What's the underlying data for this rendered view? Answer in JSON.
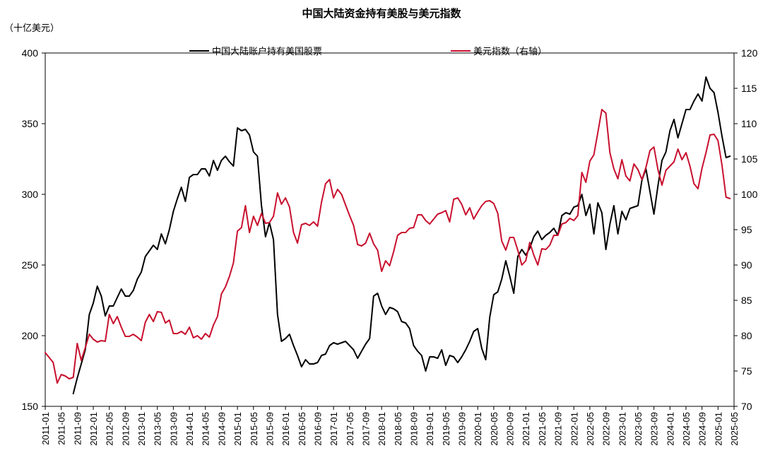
{
  "chart_data": {
    "type": "line",
    "title": "中国大陆资金持有美股与美元指数",
    "ylabel_left": "（十亿美元）",
    "ylim_left": [
      150,
      400
    ],
    "yticks_left": [
      "150",
      "200",
      "250",
      "300",
      "350",
      "400"
    ],
    "ylim_right": [
      70,
      120
    ],
    "yticks_right": [
      "70",
      "75",
      "80",
      "85",
      "90",
      "95",
      "100",
      "105",
      "110",
      "115",
      "120"
    ],
    "x_start": "2011-01",
    "x_end": "2025-05",
    "x_labels": [
      "2011-01",
      "2011-05",
      "2011-09",
      "2012-01",
      "2012-05",
      "2012-09",
      "2013-01",
      "2013-05",
      "2013-09",
      "2014-01",
      "2014-05",
      "2014-09",
      "2015-01",
      "2015-05",
      "2015-09",
      "2016-01",
      "2016-05",
      "2016-09",
      "2017-01",
      "2017-05",
      "2017-09",
      "2018-01",
      "2018-05",
      "2018-09",
      "2019-01",
      "2019-05",
      "2019-09",
      "2020-01",
      "2020-05",
      "2020-09",
      "2021-01",
      "2021-05",
      "2021-09",
      "2022-01",
      "2022-05",
      "2022-09",
      "2023-01",
      "2023-05",
      "2023-09",
      "2024-01",
      "2024-05",
      "2024-09",
      "2025-01",
      "2025-05"
    ],
    "series": [
      {
        "name": "中国大陆账户持有美国股票",
        "axis": "left",
        "color": "#000000",
        "start": "2011-08",
        "values": [
          159,
          170,
          180,
          190,
          215,
          223,
          235,
          228,
          214,
          221,
          221,
          227,
          233,
          228,
          228,
          232,
          240,
          245,
          256,
          260,
          264,
          261,
          272,
          265,
          275,
          288,
          297,
          305,
          295,
          312,
          314,
          314,
          318,
          318,
          313,
          324,
          317,
          324,
          327,
          323,
          320,
          347,
          345,
          346,
          342,
          330,
          327,
          292,
          270,
          280,
          268,
          215,
          196,
          198,
          201,
          193,
          186,
          178,
          183,
          180,
          180,
          181,
          186,
          187,
          193,
          195,
          194,
          195,
          196,
          193,
          190,
          184,
          189,
          194,
          198,
          228,
          230,
          221,
          215,
          220,
          219,
          217,
          210,
          209,
          205,
          193,
          189,
          186,
          175,
          185,
          185,
          184,
          190,
          179,
          186,
          185,
          181,
          185,
          190,
          196,
          203,
          205,
          191,
          183,
          213,
          229,
          231,
          240,
          253,
          242,
          230,
          256,
          261,
          257,
          262,
          270,
          274,
          268,
          271,
          273,
          276,
          271,
          285,
          287,
          286,
          291,
          292,
          300,
          285,
          293,
          272,
          294,
          287,
          261,
          279,
          292,
          272,
          288,
          282,
          290,
          291,
          292,
          310,
          318,
          302,
          286,
          306,
          324,
          330,
          345,
          353,
          340,
          350,
          360,
          360,
          366,
          371,
          366,
          383,
          375,
          372,
          358,
          341,
          326,
          327
        ]
      },
      {
        "name": "美元指数（右轴）",
        "axis": "right",
        "color": "#c8102e",
        "start": "2011-01",
        "values": [
          77.6,
          76.9,
          76.2,
          73.3,
          74.5,
          74.3,
          73.9,
          74.1,
          78.9,
          76.5,
          78.3,
          80.2,
          79.5,
          79.1,
          79.3,
          79.2,
          83.0,
          81.7,
          82.7,
          81.2,
          79.9,
          79.9,
          80.2,
          79.8,
          79.3,
          81.9,
          83.0,
          82.0,
          83.4,
          83.3,
          81.8,
          82.2,
          80.3,
          80.3,
          80.6,
          80.2,
          81.2,
          79.7,
          80.0,
          79.5,
          80.3,
          79.8,
          81.5,
          82.7,
          85.9,
          86.9,
          88.4,
          90.3,
          94.8,
          95.3,
          98.4,
          94.6,
          96.9,
          95.6,
          97.3,
          95.9,
          96.0,
          96.9,
          100.2,
          98.6,
          99.5,
          98.2,
          94.6,
          93.1,
          95.7,
          95.9,
          95.6,
          96.1,
          95.5,
          98.9,
          101.5,
          102.1,
          99.5,
          100.7,
          100.0,
          98.5,
          97.0,
          95.6,
          92.9,
          92.7,
          93.1,
          94.5,
          93.0,
          92.1,
          89.1,
          90.6,
          89.9,
          91.9,
          94.2,
          94.6,
          94.6,
          95.2,
          95.3,
          97.1,
          97.1,
          96.3,
          95.8,
          96.5,
          97.2,
          97.4,
          97.7,
          96.1,
          99.3,
          99.5,
          98.6,
          97.1,
          98.1,
          96.5,
          97.5,
          98.4,
          99.0,
          99.1,
          98.7,
          97.3,
          93.4,
          92.1,
          93.9,
          93.9,
          92.1,
          90.0,
          90.6,
          93.2,
          91.4,
          90.0,
          92.3,
          92.2,
          92.8,
          94.2,
          94.2,
          95.8,
          96.0,
          96.6,
          96.3,
          97.0,
          103.1,
          101.7,
          104.7,
          105.6,
          108.8,
          112.0,
          111.5,
          105.9,
          103.6,
          102.2,
          104.9,
          102.6,
          101.9,
          104.3,
          103.5,
          102.1,
          103.8,
          106.2,
          106.7,
          103.5,
          101.3,
          103.4,
          104.0,
          104.6,
          106.4,
          104.9,
          105.9,
          104.0,
          101.5,
          100.8,
          103.7,
          105.9,
          108.4,
          108.5,
          107.6,
          104.1,
          99.6,
          99.4
        ]
      }
    ]
  }
}
